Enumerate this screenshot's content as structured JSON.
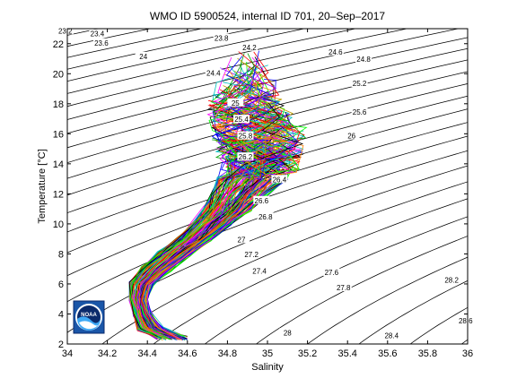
{
  "chart_data": {
    "type": "line",
    "title": "WMO ID 5900524, internal ID 701, 20–Sep–2017",
    "xlabel": "Salinity",
    "ylabel": "Temperature [°C]",
    "xlim": [
      34,
      36
    ],
    "ylim": [
      2,
      23
    ],
    "xticks": [
      {
        "v": 34,
        "label": "34"
      },
      {
        "v": 34.2,
        "label": "34.2"
      },
      {
        "v": 34.4,
        "label": "34.4"
      },
      {
        "v": 34.6,
        "label": "34.6"
      },
      {
        "v": 34.8,
        "label": "34.8"
      },
      {
        "v": 35,
        "label": "35"
      },
      {
        "v": 35.2,
        "label": "35.2"
      },
      {
        "v": 35.4,
        "label": "35.4"
      },
      {
        "v": 35.6,
        "label": "35.6"
      },
      {
        "v": 35.8,
        "label": "35.8"
      },
      {
        "v": 36,
        "label": "36"
      }
    ],
    "yticks": [
      {
        "v": 2,
        "label": "2"
      },
      {
        "v": 4,
        "label": "4"
      },
      {
        "v": 6,
        "label": "6"
      },
      {
        "v": 8,
        "label": "8"
      },
      {
        "v": 10,
        "label": "10"
      },
      {
        "v": 12,
        "label": "12"
      },
      {
        "v": 14,
        "label": "14"
      },
      {
        "v": 16,
        "label": "16"
      },
      {
        "v": 18,
        "label": "18"
      },
      {
        "v": 20,
        "label": "20"
      },
      {
        "v": 22,
        "label": "22"
      }
    ],
    "isopycnal_labels": [
      {
        "label": "23.2",
        "s": 33.99,
        "t": 22.8
      },
      {
        "label": "23.4",
        "s": 34.15,
        "t": 22.6
      },
      {
        "label": "23.6",
        "s": 34.17,
        "t": 22.0
      },
      {
        "label": "23.8",
        "s": 34.77,
        "t": 22.3
      },
      {
        "label": "24",
        "s": 34.38,
        "t": 21.1
      },
      {
        "label": "24.2",
        "s": 34.91,
        "t": 21.7
      },
      {
        "label": "24.4",
        "s": 34.73,
        "t": 20.0
      },
      {
        "label": "24.6",
        "s": 35.34,
        "t": 21.4
      },
      {
        "label": "24.8",
        "s": 35.48,
        "t": 20.9
      },
      {
        "label": "25",
        "s": 34.84,
        "t": 18.0
      },
      {
        "label": "25.2",
        "s": 35.46,
        "t": 19.3
      },
      {
        "label": "25.4",
        "s": 34.87,
        "t": 16.9
      },
      {
        "label": "25.6",
        "s": 35.46,
        "t": 17.4
      },
      {
        "label": "25.8",
        "s": 34.89,
        "t": 15.8
      },
      {
        "label": "26",
        "s": 35.42,
        "t": 15.8
      },
      {
        "label": "26.2",
        "s": 34.89,
        "t": 14.4
      },
      {
        "label": "26.4",
        "s": 35.06,
        "t": 12.9
      },
      {
        "label": "26.6",
        "s": 34.97,
        "t": 11.5
      },
      {
        "label": "26.8",
        "s": 34.99,
        "t": 10.4
      },
      {
        "label": "27",
        "s": 34.87,
        "t": 8.9
      },
      {
        "label": "27.2",
        "s": 34.92,
        "t": 7.9
      },
      {
        "label": "27.4",
        "s": 34.96,
        "t": 6.8
      },
      {
        "label": "27.6",
        "s": 35.32,
        "t": 6.7
      },
      {
        "label": "27.8",
        "s": 35.38,
        "t": 5.7
      },
      {
        "label": "28",
        "s": 35.1,
        "t": 2.7
      },
      {
        "label": "28.2",
        "s": 35.92,
        "t": 6.2
      },
      {
        "label": "28.4",
        "s": 35.62,
        "t": 2.5
      },
      {
        "label": "28.6",
        "s": 35.99,
        "t": 3.5
      }
    ],
    "profiles_envelope": [
      {
        "t": 2.4,
        "s_min": 34.45,
        "s_max": 34.6
      },
      {
        "t": 3.0,
        "s_min": 34.35,
        "s_max": 34.48
      },
      {
        "t": 4.0,
        "s_min": 34.33,
        "s_max": 34.42
      },
      {
        "t": 5.0,
        "s_min": 34.31,
        "s_max": 34.4
      },
      {
        "t": 6.0,
        "s_min": 34.31,
        "s_max": 34.43
      },
      {
        "t": 7.0,
        "s_min": 34.37,
        "s_max": 34.52
      },
      {
        "t": 8.0,
        "s_min": 34.45,
        "s_max": 34.62
      },
      {
        "t": 9.0,
        "s_min": 34.55,
        "s_max": 34.72
      },
      {
        "t": 10.0,
        "s_min": 34.62,
        "s_max": 34.82
      },
      {
        "t": 11.0,
        "s_min": 34.68,
        "s_max": 34.92
      },
      {
        "t": 12.0,
        "s_min": 34.72,
        "s_max": 35.0
      },
      {
        "t": 13.0,
        "s_min": 34.75,
        "s_max": 35.1
      },
      {
        "t": 14.0,
        "s_min": 34.76,
        "s_max": 35.16
      },
      {
        "t": 15.0,
        "s_min": 34.74,
        "s_max": 35.18
      },
      {
        "t": 16.0,
        "s_min": 34.72,
        "s_max": 35.2
      },
      {
        "t": 17.0,
        "s_min": 34.7,
        "s_max": 35.15
      },
      {
        "t": 18.0,
        "s_min": 34.7,
        "s_max": 35.1
      },
      {
        "t": 19.0,
        "s_min": 34.74,
        "s_max": 35.06
      },
      {
        "t": 20.0,
        "s_min": 34.76,
        "s_max": 35.02
      },
      {
        "t": 21.0,
        "s_min": 34.8,
        "s_max": 34.98
      },
      {
        "t": 22.0,
        "s_min": 34.85,
        "s_max": 34.95
      }
    ],
    "logo": "NOAA",
    "colors": {
      "isopycnal": "#000000",
      "profiles": [
        "#ff0000",
        "#0000ff",
        "#00a000",
        "#ff00ff",
        "#00bfbf",
        "#000000",
        "#c0a000",
        "#ff8000",
        "#8000ff",
        "#00ff00"
      ],
      "logo_blue": "#1a56a8",
      "logo_navy": "#0b2a6b",
      "logo_light": "#3fa9f5"
    },
    "grid": false,
    "legend": "none"
  }
}
